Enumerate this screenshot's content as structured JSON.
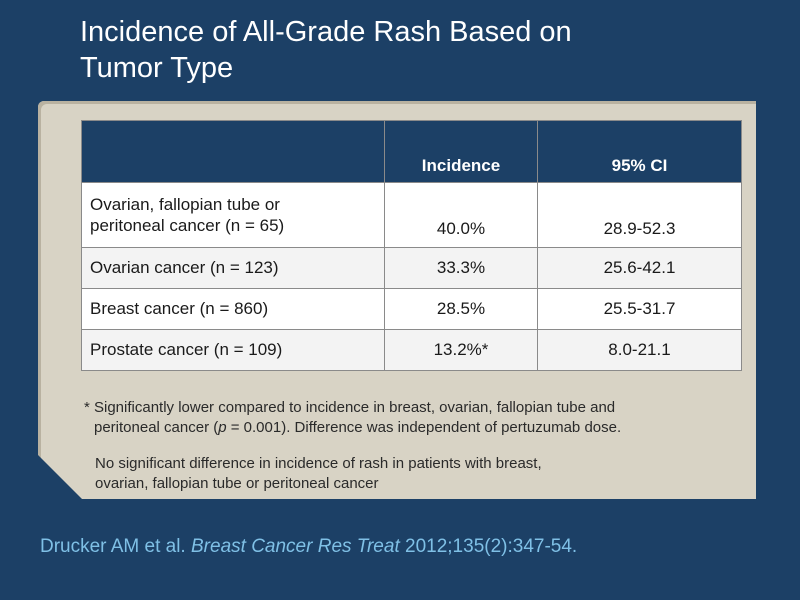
{
  "title": {
    "line1": "Incidence of All-Grade Rash Based on",
    "line2": "Tumor Type"
  },
  "table": {
    "headers": [
      "",
      "Incidence",
      "95% CI"
    ],
    "rows": [
      {
        "label_line1": "Ovarian, fallopian tube or",
        "label_line2": "peritoneal cancer (n = 65)",
        "incidence": "40.0%",
        "ci": "28.9-52.3"
      },
      {
        "label": "Ovarian cancer (n = 123)",
        "incidence": "33.3%",
        "ci": "25.6-42.1"
      },
      {
        "label": "Breast cancer (n = 860)",
        "incidence": "28.5%",
        "ci": "25.5-31.7"
      },
      {
        "label": "Prostate cancer (n = 109)",
        "incidence": "13.2%*",
        "ci": "8.0-21.1"
      }
    ]
  },
  "footnotes": {
    "asterisk_line1": "* Significantly lower compared to incidence in breast, ovarian, fallopian tube and",
    "asterisk_line2_a": "peritoneal cancer (",
    "asterisk_line2_p": "p",
    "asterisk_line2_b": " = 0.001). Difference was independent of pertuzumab dose.",
    "note_line1": "No significant difference in incidence of rash in patients with breast,",
    "note_line2": "ovarian, fallopian tube or peritoneal cancer"
  },
  "citation": {
    "authors": "Drucker AM et al. ",
    "journal": "Breast Cancer Res Treat",
    "details": " 2012;135(2):347-54."
  },
  "colors": {
    "background": "#1c4066",
    "panel": "#d8d3c5",
    "citation": "#7fc0e6"
  }
}
